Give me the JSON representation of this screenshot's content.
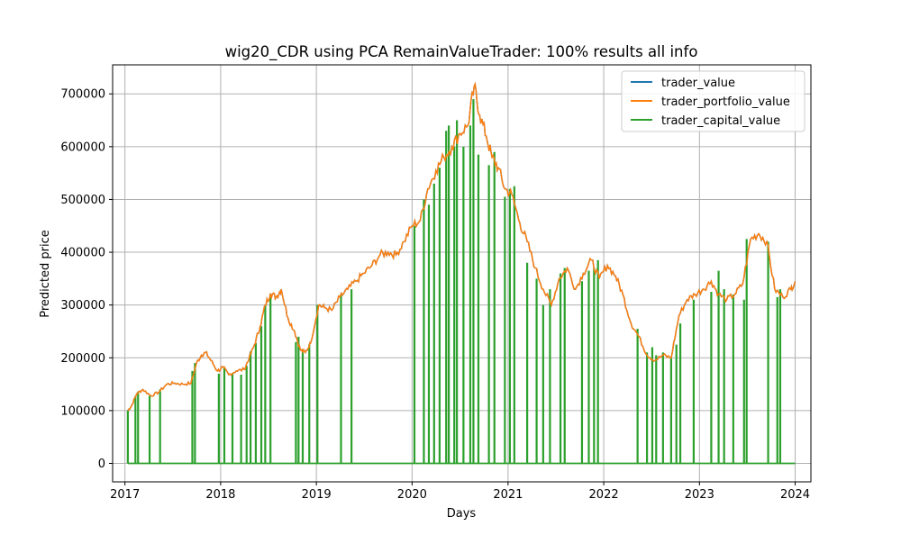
{
  "chart_data": {
    "type": "line",
    "title": "wig20_CDR using PCA RemainValueTrader: 100% results all info",
    "xlabel": "Days",
    "ylabel": "Predicted price",
    "xlim": [
      "2016-11-15",
      "2024-03-01"
    ],
    "ylim": [
      -35000,
      755000
    ],
    "grid": true,
    "legend_position": "upper right",
    "x_ticks": [
      "2017-01-01",
      "2018-01-01",
      "2019-01-01",
      "2020-01-01",
      "2021-01-01",
      "2022-01-01",
      "2023-01-01",
      "2024-01-01"
    ],
    "x_tick_labels": [
      "2017",
      "2018",
      "2019",
      "2020",
      "2021",
      "2022",
      "2023",
      "2024"
    ],
    "y_ticks": [
      0,
      100000,
      200000,
      300000,
      400000,
      500000,
      600000,
      700000
    ],
    "y_tick_labels": [
      "0",
      "100000",
      "200000",
      "300000",
      "400000",
      "500000",
      "600000",
      "700000"
    ],
    "series": [
      {
        "name": "trader_value",
        "color": "#1f77b4",
        "x": [
          "2017-01-12",
          "2017-01-25",
          "2017-02-15",
          "2017-03-10",
          "2017-04-10",
          "2017-05-10",
          "2017-06-10",
          "2017-07-10",
          "2017-08-10",
          "2017-09-10",
          "2017-10-01",
          "2017-10-20",
          "2017-11-05",
          "2017-11-25",
          "2017-12-20",
          "2018-01-10",
          "2018-02-01",
          "2018-03-01",
          "2018-04-01",
          "2018-04-20",
          "2018-05-10",
          "2018-06-01",
          "2018-06-20",
          "2018-07-10",
          "2018-08-01",
          "2018-08-20",
          "2018-09-15",
          "2018-10-10",
          "2018-11-01",
          "2018-11-20",
          "2018-12-10",
          "2019-01-10",
          "2019-02-01",
          "2019-03-01",
          "2019-04-01",
          "2019-05-01",
          "2019-06-01",
          "2019-07-01",
          "2019-08-01",
          "2019-09-01",
          "2019-10-01",
          "2019-11-01",
          "2019-12-01",
          "2020-01-01",
          "2020-02-01",
          "2020-03-01",
          "2020-04-01",
          "2020-05-01",
          "2020-06-01",
          "2020-07-01",
          "2020-08-01",
          "2020-08-25",
          "2020-09-15",
          "2020-10-10",
          "2020-11-01",
          "2020-11-25",
          "2020-12-20",
          "2021-01-15",
          "2021-02-15",
          "2021-03-15",
          "2021-04-15",
          "2021-05-15",
          "2021-06-15",
          "2021-07-15",
          "2021-08-15",
          "2021-09-15",
          "2021-10-15",
          "2021-11-15",
          "2021-12-15",
          "2022-01-15",
          "2022-02-15",
          "2022-03-15",
          "2022-04-15",
          "2022-05-15",
          "2022-06-15",
          "2022-07-15",
          "2022-08-15",
          "2022-09-15",
          "2022-10-15",
          "2022-11-15",
          "2022-12-15",
          "2023-01-15",
          "2023-02-15",
          "2023-03-15",
          "2023-04-15",
          "2023-05-15",
          "2023-06-15",
          "2023-07-15",
          "2023-08-15",
          "2023-09-15",
          "2023-10-15",
          "2023-11-15",
          "2023-12-15",
          "2024-01-01"
        ],
        "y": [
          100000,
          108000,
          132000,
          140000,
          128000,
          135000,
          150000,
          152000,
          150000,
          152000,
          190000,
          205000,
          210000,
          195000,
          175000,
          182000,
          168000,
          175000,
          178000,
          200000,
          225000,
          260000,
          300000,
          322000,
          315000,
          330000,
          275000,
          250000,
          215000,
          210000,
          228000,
          300000,
          295000,
          290000,
          315000,
          330000,
          345000,
          360000,
          375000,
          395000,
          400000,
          395000,
          420000,
          450000,
          460000,
          520000,
          555000,
          580000,
          600000,
          625000,
          640000,
          715000,
          660000,
          620000,
          580000,
          560000,
          520000,
          510000,
          455000,
          420000,
          370000,
          330000,
          300000,
          350000,
          370000,
          330000,
          360000,
          385000,
          350000,
          375000,
          355000,
          320000,
          265000,
          240000,
          205000,
          195000,
          205000,
          200000,
          280000,
          310000,
          320000,
          330000,
          345000,
          320000,
          310000,
          320000,
          340000,
          425000,
          435000,
          420000,
          330000,
          315000,
          330000,
          345000
        ]
      },
      {
        "name": "trader_portfolio_value",
        "color": "#ff7f0e",
        "x": [
          "2017-01-12",
          "2017-01-25",
          "2017-02-15",
          "2017-03-10",
          "2017-04-10",
          "2017-05-10",
          "2017-06-10",
          "2017-07-10",
          "2017-08-10",
          "2017-09-10",
          "2017-10-01",
          "2017-10-20",
          "2017-11-05",
          "2017-11-25",
          "2017-12-20",
          "2018-01-10",
          "2018-02-01",
          "2018-03-01",
          "2018-04-01",
          "2018-04-20",
          "2018-05-10",
          "2018-06-01",
          "2018-06-20",
          "2018-07-10",
          "2018-08-01",
          "2018-08-20",
          "2018-09-15",
          "2018-10-10",
          "2018-11-01",
          "2018-11-20",
          "2018-12-10",
          "2019-01-10",
          "2019-02-01",
          "2019-03-01",
          "2019-04-01",
          "2019-05-01",
          "2019-06-01",
          "2019-07-01",
          "2019-08-01",
          "2019-09-01",
          "2019-10-01",
          "2019-11-01",
          "2019-12-01",
          "2020-01-01",
          "2020-02-01",
          "2020-03-01",
          "2020-04-01",
          "2020-05-01",
          "2020-06-01",
          "2020-07-01",
          "2020-08-01",
          "2020-08-25",
          "2020-09-15",
          "2020-10-10",
          "2020-11-01",
          "2020-11-25",
          "2020-12-20",
          "2021-01-15",
          "2021-02-15",
          "2021-03-15",
          "2021-04-15",
          "2021-05-15",
          "2021-06-15",
          "2021-07-15",
          "2021-08-15",
          "2021-09-15",
          "2021-10-15",
          "2021-11-15",
          "2021-12-15",
          "2022-01-15",
          "2022-02-15",
          "2022-03-15",
          "2022-04-15",
          "2022-05-15",
          "2022-06-15",
          "2022-07-15",
          "2022-08-15",
          "2022-09-15",
          "2022-10-15",
          "2022-11-15",
          "2022-12-15",
          "2023-01-15",
          "2023-02-15",
          "2023-03-15",
          "2023-04-15",
          "2023-05-15",
          "2023-06-15",
          "2023-07-15",
          "2023-08-15",
          "2023-09-15",
          "2023-10-15",
          "2023-11-15",
          "2023-12-15",
          "2024-01-01"
        ],
        "y": [
          100000,
          108000,
          132000,
          140000,
          128000,
          135000,
          150000,
          152000,
          150000,
          152000,
          190000,
          205000,
          210000,
          195000,
          175000,
          182000,
          168000,
          175000,
          178000,
          200000,
          225000,
          260000,
          300000,
          322000,
          315000,
          330000,
          275000,
          250000,
          215000,
          210000,
          228000,
          300000,
          295000,
          290000,
          315000,
          330000,
          345000,
          360000,
          375000,
          395000,
          400000,
          395000,
          420000,
          450000,
          460000,
          520000,
          555000,
          580000,
          600000,
          625000,
          640000,
          715000,
          660000,
          620000,
          580000,
          560000,
          520000,
          510000,
          455000,
          420000,
          370000,
          330000,
          300000,
          350000,
          370000,
          330000,
          360000,
          385000,
          350000,
          375000,
          355000,
          320000,
          265000,
          240000,
          205000,
          195000,
          205000,
          200000,
          280000,
          310000,
          320000,
          330000,
          345000,
          320000,
          310000,
          320000,
          340000,
          425000,
          435000,
          420000,
          330000,
          315000,
          330000,
          345000
        ]
      },
      {
        "name": "trader_capital_value",
        "color": "#2ca02c",
        "baseline": 0,
        "spike_dates": [
          "2017-01-12",
          "2017-02-10",
          "2017-02-20",
          "2017-04-05",
          "2017-05-15",
          "2017-09-15",
          "2017-09-25",
          "2017-12-25",
          "2018-01-15",
          "2018-02-15",
          "2018-03-20",
          "2018-04-10",
          "2018-04-25",
          "2018-05-15",
          "2018-06-05",
          "2018-06-20",
          "2018-07-10",
          "2018-10-15",
          "2018-10-25",
          "2018-11-10",
          "2018-12-05",
          "2019-01-05",
          "2019-04-05",
          "2019-05-15",
          "2020-01-10",
          "2020-02-15",
          "2020-03-05",
          "2020-03-25",
          "2020-04-15",
          "2020-05-10",
          "2020-05-20",
          "2020-06-10",
          "2020-06-20",
          "2020-07-15",
          "2020-08-10",
          "2020-08-22",
          "2020-09-10",
          "2020-10-20",
          "2020-11-10",
          "2020-12-20",
          "2021-01-08",
          "2021-01-25",
          "2021-03-15",
          "2021-04-20",
          "2021-05-15",
          "2021-06-10",
          "2021-07-20",
          "2021-08-05",
          "2021-10-10",
          "2021-11-05",
          "2021-11-25",
          "2021-12-10",
          "2022-05-10",
          "2022-06-15",
          "2022-07-05",
          "2022-07-20",
          "2022-08-15",
          "2022-09-15",
          "2022-10-05",
          "2022-10-20",
          "2022-12-10",
          "2023-02-15",
          "2023-03-15",
          "2023-04-05",
          "2023-05-10",
          "2023-06-20",
          "2023-06-30",
          "2023-09-20",
          "2023-10-25",
          "2023-11-05"
        ],
        "spike_values": [
          100000,
          128000,
          136000,
          128000,
          140000,
          175000,
          190000,
          170000,
          180000,
          170000,
          168000,
          185000,
          212000,
          228000,
          260000,
          300000,
          320000,
          230000,
          240000,
          215000,
          225000,
          300000,
          320000,
          330000,
          450000,
          500000,
          490000,
          530000,
          560000,
          630000,
          640000,
          600000,
          650000,
          600000,
          640000,
          690000,
          585000,
          565000,
          590000,
          505000,
          520000,
          525000,
          380000,
          350000,
          300000,
          330000,
          360000,
          370000,
          345000,
          365000,
          370000,
          385000,
          255000,
          210000,
          220000,
          205000,
          210000,
          200000,
          225000,
          265000,
          310000,
          325000,
          365000,
          330000,
          320000,
          310000,
          425000,
          420000,
          315000,
          330000
        ]
      }
    ]
  }
}
